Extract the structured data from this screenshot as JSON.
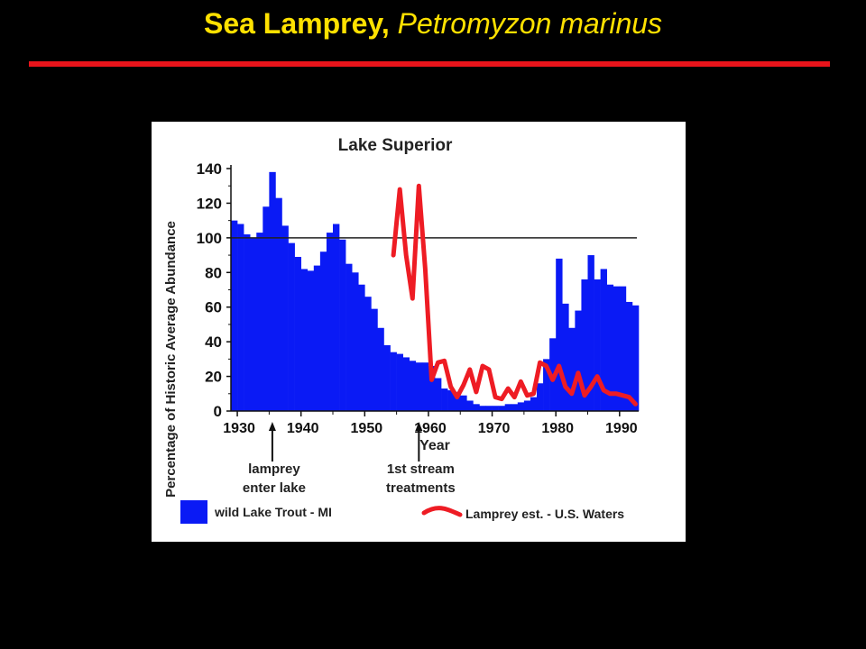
{
  "slide": {
    "title_main": "Sea Lamprey,",
    "title_latin": "Petromyzon marinus"
  },
  "colors": {
    "background": "#000000",
    "title": "#ffe100",
    "rule": "#e8141b",
    "bars": "#0a1af5",
    "lamprey_line": "#ee1c24"
  },
  "chart_data": {
    "type": "bar",
    "title": "Lake Superior",
    "xlabel": "Year",
    "ylabel": "Percentage of Historic Average Abundance",
    "xlim": [
      1929,
      1993
    ],
    "ylim": [
      0,
      140
    ],
    "xticks": [
      1930,
      1940,
      1950,
      1960,
      1970,
      1980,
      1990
    ],
    "yticks": [
      0,
      20,
      40,
      60,
      80,
      100,
      120,
      140
    ],
    "reference_line": 100,
    "grid": false,
    "legend_position": "bottom",
    "series": [
      {
        "name": "wild Lake Trout - MI",
        "kind": "bar",
        "x": [
          1929,
          1930,
          1931,
          1932,
          1933,
          1934,
          1935,
          1936,
          1937,
          1938,
          1939,
          1940,
          1941,
          1942,
          1943,
          1944,
          1945,
          1946,
          1947,
          1948,
          1949,
          1950,
          1951,
          1952,
          1953,
          1954,
          1955,
          1956,
          1957,
          1958,
          1959,
          1960,
          1961,
          1962,
          1963,
          1964,
          1965,
          1966,
          1967,
          1968,
          1969,
          1970,
          1971,
          1972,
          1973,
          1974,
          1975,
          1976,
          1977,
          1978,
          1979,
          1980,
          1981,
          1982,
          1983,
          1984,
          1985,
          1986,
          1987,
          1988,
          1989,
          1990,
          1991,
          1992
        ],
        "values": [
          110,
          108,
          102,
          100,
          103,
          118,
          138,
          123,
          107,
          97,
          89,
          82,
          81,
          84,
          92,
          103,
          108,
          99,
          85,
          80,
          73,
          66,
          59,
          48,
          38,
          34,
          33,
          31,
          29,
          28,
          28,
          26,
          19,
          13,
          12,
          11,
          9,
          6,
          4,
          3,
          3,
          3,
          3,
          4,
          4,
          5,
          6,
          8,
          16,
          30,
          42,
          88,
          62,
          48,
          58,
          76,
          90,
          76,
          82,
          73,
          72,
          72,
          63,
          61
        ]
      },
      {
        "name": "Lamprey est. - U.S. Waters",
        "kind": "line",
        "x": [
          1954,
          1955,
          1956,
          1957,
          1958,
          1959,
          1960,
          1961,
          1962,
          1963,
          1964,
          1965,
          1966,
          1967,
          1968,
          1969,
          1970,
          1971,
          1972,
          1973,
          1974,
          1975,
          1976,
          1977,
          1978,
          1979,
          1980,
          1981,
          1982,
          1983,
          1984,
          1985,
          1986,
          1987,
          1988,
          1989,
          1990,
          1991,
          1992
        ],
        "values": [
          90,
          128,
          90,
          65,
          130,
          82,
          18,
          28,
          29,
          14,
          8,
          15,
          24,
          11,
          26,
          24,
          8,
          7,
          13,
          8,
          17,
          9,
          10,
          28,
          26,
          18,
          26,
          14,
          10,
          22,
          9,
          14,
          20,
          12,
          10,
          10,
          9,
          8,
          4
        ]
      }
    ],
    "annotations": [
      {
        "text_lines": [
          "lamprey",
          "enter lake"
        ],
        "x": 1935
      },
      {
        "text_lines": [
          "1st stream",
          "treatments"
        ],
        "x": 1958
      }
    ]
  }
}
